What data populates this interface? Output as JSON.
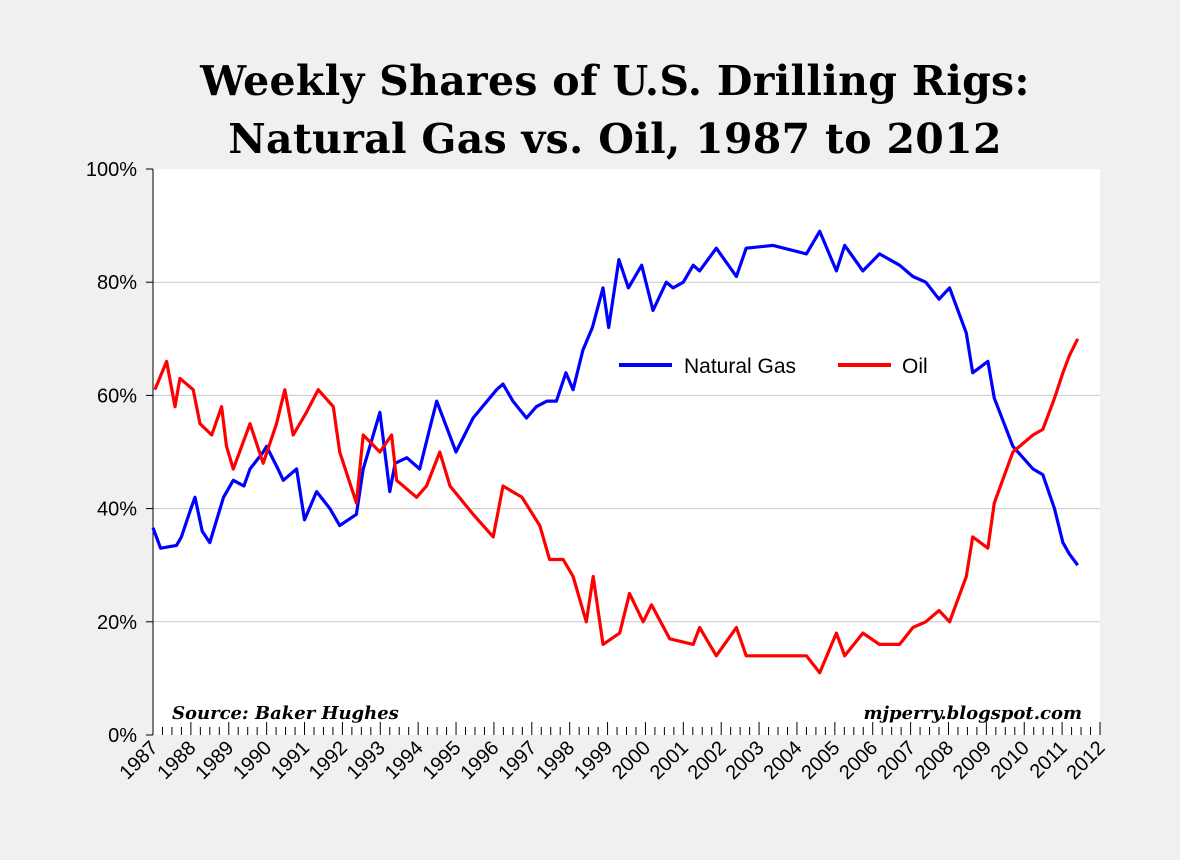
{
  "chart_data": {
    "type": "line",
    "title": "Weekly Shares of U.S. Drilling Rigs:",
    "subtitle": "Natural Gas vs. Oil, 1987 to 2012",
    "xlabel": "",
    "ylabel": "",
    "xlim": [
      1987,
      2012
    ],
    "ylim": [
      0,
      100
    ],
    "y_ticks": [
      "0%",
      "20%",
      "40%",
      "60%",
      "80%",
      "100%"
    ],
    "x_ticks": [
      "1987",
      "1988",
      "1989",
      "1990",
      "1991",
      "1992",
      "1993",
      "1994",
      "1995",
      "1996",
      "1997",
      "1998",
      "1999",
      "2000",
      "2001",
      "2002",
      "2003",
      "2004",
      "2005",
      "2006",
      "2007",
      "2008",
      "2009",
      "2010",
      "2011",
      "2012"
    ],
    "grid": "horizontal",
    "legend_placement": "center-right",
    "source_note": "Source: Baker Hughes",
    "watermark": "mjperry.blogspot.com",
    "series": [
      {
        "name": "Natural Gas",
        "color": "#0000ff",
        "x": [
          1987.0,
          1987.2,
          1987.62,
          1987.75,
          1988.0,
          1988.11,
          1988.3,
          1988.5,
          1988.86,
          1989.12,
          1989.4,
          1989.56,
          1989.91,
          1990.0,
          1990.3,
          1990.44,
          1990.79,
          1991.0,
          1991.32,
          1991.67,
          1991.93,
          1992.37,
          1992.55,
          1992.99,
          1993.25,
          1993.39,
          1993.7,
          1994.04,
          1994.3,
          1994.49,
          1995.0,
          1995.45,
          1996.07,
          1996.24,
          1996.5,
          1996.86,
          1997.12,
          1997.4,
          1997.65,
          1997.9,
          1998.09,
          1998.35,
          1998.6,
          1998.88,
          1999.03,
          1999.3,
          1999.55,
          1999.9,
          2000.2,
          2000.55,
          2000.73,
          2001.0,
          2001.26,
          2001.43,
          2001.87,
          2002.4,
          2002.66,
          2003.37,
          2004.25,
          2004.6,
          2005.04,
          2005.26,
          2005.74,
          2006.18,
          2006.71,
          2007.06,
          2007.4,
          2007.75,
          2008.03,
          2008.47,
          2008.64,
          2009.04,
          2009.21,
          2009.7,
          2010.23,
          2010.49,
          2010.8,
          2011.02,
          2011.19,
          2011.41
        ],
        "y": [
          36.6,
          33,
          33.5,
          35,
          40,
          42,
          36,
          34,
          42,
          45,
          44,
          47,
          50,
          51,
          47,
          45,
          47,
          38,
          43,
          40,
          37,
          39,
          47,
          57,
          43,
          48,
          49,
          47,
          54,
          59,
          50,
          56,
          61,
          62,
          59,
          56,
          58,
          59,
          59,
          64,
          61,
          68,
          72,
          79,
          72,
          84,
          79,
          83,
          75,
          80,
          79,
          80,
          83,
          82,
          86,
          81,
          86,
          86.5,
          85,
          89,
          82,
          86.5,
          82,
          85,
          83,
          81,
          80,
          77,
          79,
          71,
          64,
          66,
          59.5,
          51,
          47,
          46,
          40,
          34,
          32,
          30
        ]
      },
      {
        "name": "Oil",
        "color": "#ff0000",
        "x": [
          1987.05,
          1987.36,
          1987.58,
          1987.71,
          1988.06,
          1988.24,
          1988.55,
          1988.81,
          1988.94,
          1989.12,
          1989.56,
          1989.91,
          1990.26,
          1990.48,
          1990.7,
          1991.05,
          1991.36,
          1991.76,
          1991.93,
          1992.37,
          1992.55,
          1992.99,
          1993.3,
          1993.43,
          1993.96,
          1994.22,
          1994.57,
          1994.84,
          1995.45,
          1995.98,
          1996.24,
          1996.74,
          1997.21,
          1997.47,
          1997.83,
          1998.09,
          1998.44,
          1998.62,
          1998.88,
          1999.32,
          1999.58,
          1999.94,
          2000.16,
          2000.64,
          2001.26,
          2001.43,
          2001.87,
          2002.4,
          2002.66,
          2003.37,
          2004.25,
          2004.6,
          2005.04,
          2005.26,
          2005.74,
          2006.18,
          2006.71,
          2007.06,
          2007.4,
          2007.75,
          2008.03,
          2008.47,
          2008.64,
          2009.04,
          2009.21,
          2009.7,
          2010.23,
          2010.49,
          2010.8,
          2011.02,
          2011.19,
          2011.41
        ],
        "y": [
          61,
          66,
          58,
          63,
          61,
          55,
          53,
          58,
          51,
          47,
          55,
          48,
          55,
          61,
          53,
          57,
          61,
          58,
          50,
          41,
          53,
          50,
          53,
          45,
          42,
          44,
          50,
          44,
          39,
          35,
          44,
          42,
          37,
          31,
          31,
          28,
          20,
          28,
          16,
          18,
          25,
          20,
          23,
          17,
          16,
          19,
          14,
          19,
          14,
          14,
          14,
          11,
          18,
          14,
          18,
          16,
          16,
          19,
          20,
          22,
          20,
          28,
          35,
          33,
          41,
          50,
          53,
          54,
          59.5,
          64,
          67,
          70
        ]
      }
    ]
  }
}
